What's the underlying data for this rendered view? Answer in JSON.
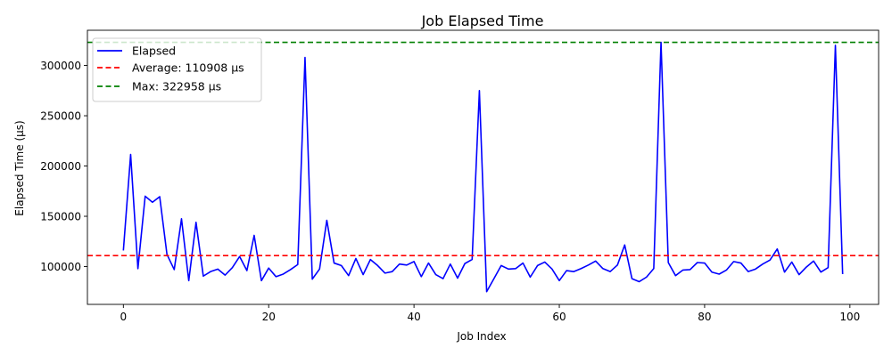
{
  "chart_data": {
    "type": "line",
    "title": "Job Elapsed Time",
    "xlabel": "Job Index",
    "ylabel": "Elapsed Time (µs)",
    "xlim": [
      -4.95,
      103.95
    ],
    "ylim": [
      62400,
      335000
    ],
    "x_ticks": [
      0,
      20,
      40,
      60,
      80,
      100
    ],
    "y_ticks": [
      100000,
      150000,
      200000,
      250000,
      300000
    ],
    "x_tick_labels": [
      "0",
      "20",
      "40",
      "60",
      "80",
      "100"
    ],
    "y_tick_labels": [
      "100000",
      "150000",
      "200000",
      "250000",
      "300000"
    ],
    "grid": false,
    "legend_position": "top-left",
    "series": [
      {
        "name": "Elapsed",
        "color": "#0000ff",
        "style": "solid",
        "x": [
          0,
          1,
          2,
          3,
          4,
          5,
          6,
          7,
          8,
          9,
          10,
          11,
          12,
          13,
          14,
          15,
          16,
          17,
          18,
          19,
          20,
          21,
          22,
          23,
          24,
          25,
          26,
          27,
          28,
          29,
          30,
          31,
          32,
          33,
          34,
          35,
          36,
          37,
          38,
          39,
          40,
          41,
          42,
          43,
          44,
          45,
          46,
          47,
          48,
          49,
          50,
          51,
          52,
          53,
          54,
          55,
          56,
          57,
          58,
          59,
          60,
          61,
          62,
          63,
          64,
          65,
          66,
          67,
          68,
          69,
          70,
          71,
          72,
          73,
          74,
          75,
          76,
          77,
          78,
          79,
          80,
          81,
          82,
          83,
          84,
          85,
          86,
          87,
          88,
          89,
          90,
          91,
          92,
          93,
          94,
          95,
          96,
          97,
          98,
          99
        ],
        "values": [
          116000,
          211500,
          98000,
          170000,
          164000,
          169500,
          112000,
          97000,
          147500,
          86000,
          144000,
          90500,
          95000,
          97500,
          91500,
          99000,
          110000,
          96000,
          131000,
          86000,
          98500,
          90000,
          92500,
          97000,
          102000,
          308000,
          87500,
          97500,
          146000,
          103500,
          101000,
          91000,
          108000,
          92000,
          107000,
          101000,
          93500,
          95000,
          102500,
          101500,
          105000,
          90000,
          103500,
          92000,
          88000,
          102500,
          88500,
          103000,
          107000,
          275000,
          75000,
          88000,
          101000,
          97500,
          98000,
          103500,
          89500,
          101000,
          104500,
          97500,
          86000,
          96000,
          95000,
          98000,
          101500,
          105500,
          98000,
          95000,
          101500,
          121500,
          88000,
          85000,
          89500,
          98000,
          323000,
          104000,
          91000,
          96500,
          97000,
          104000,
          103500,
          94500,
          92500,
          96500,
          105000,
          103500,
          95000,
          97500,
          102500,
          106500,
          117500,
          94500,
          104500,
          92000,
          99500,
          105500,
          94500,
          99000,
          320000,
          92500
        ]
      },
      {
        "name": "Average: 110908 µs",
        "color": "#ff0000",
        "style": "dashed",
        "y": 110908
      },
      {
        "name": "Max: 322958 µs",
        "color": "#008000",
        "style": "dashed",
        "y": 322958
      }
    ]
  }
}
